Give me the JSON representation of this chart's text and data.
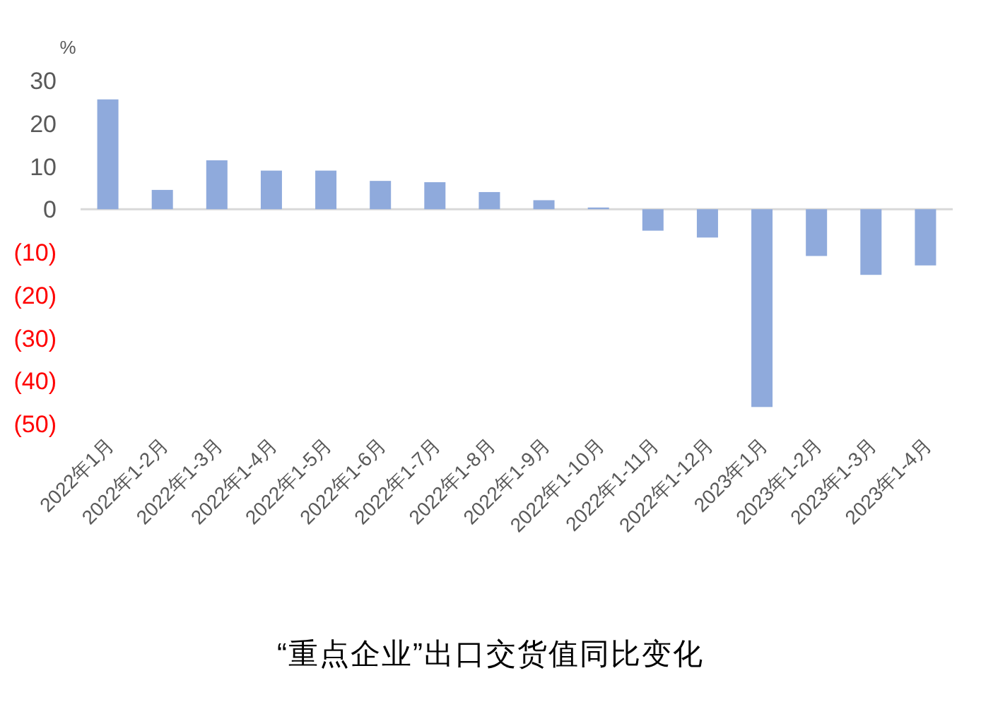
{
  "chart_data": {
    "type": "bar",
    "title": "“重点企业”出口交货值同比变化",
    "ylabel": "%",
    "categories": [
      "2022年1月",
      "2022年1-2月",
      "2022年1-3月",
      "2022年1-4月",
      "2022年1-5月",
      "2022年1-6月",
      "2022年1-7月",
      "2022年1-8月",
      "2022年1-9月",
      "2022年1-10月",
      "2022年1-11月",
      "2022年1-12月",
      "2023年1月",
      "2023年1-2月",
      "2023年1-3月",
      "2023年1-4月"
    ],
    "values": [
      25.6,
      4.5,
      11.4,
      9.0,
      9.0,
      6.6,
      6.3,
      4.0,
      2.1,
      0.4,
      -5.0,
      -6.6,
      -46.1,
      -10.9,
      -15.3,
      -13.1
    ],
    "color": "#8faadc",
    "ylim": [
      -50,
      30
    ],
    "yticks": [
      30,
      20,
      10,
      0,
      {
        "value": -10,
        "label": "(10)"
      },
      {
        "value": -20,
        "label": "(20)"
      },
      {
        "value": -30,
        "label": "(30)"
      },
      {
        "value": -40,
        "label": "(40)"
      },
      {
        "value": -50,
        "label": "(50)"
      }
    ]
  }
}
